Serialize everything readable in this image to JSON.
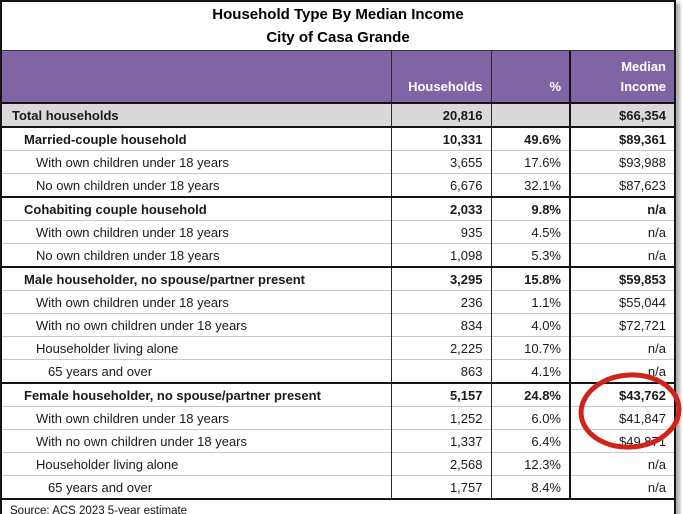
{
  "title": {
    "line1": "Household Type By Median Income",
    "line2": "City of Casa Grande"
  },
  "columns": {
    "households": "Households",
    "percent": "%",
    "median_line1": "Median",
    "median_line2": "Income"
  },
  "table": {
    "rows": [
      {
        "label": "Total households",
        "households": "20,816",
        "percent": "",
        "income": "$66,354",
        "style": "total"
      },
      {
        "label": "Married-couple household",
        "households": "10,331",
        "percent": "49.6%",
        "income": "$89,361",
        "style": "group"
      },
      {
        "label": "With own children under 18 years",
        "households": "3,655",
        "percent": "17.6%",
        "income": "$93,988",
        "style": "sub"
      },
      {
        "label": "No own children under 18 years",
        "households": "6,676",
        "percent": "32.1%",
        "income": "$87,623",
        "style": "sub"
      },
      {
        "label": "Cohabiting couple household",
        "households": "2,033",
        "percent": "9.8%",
        "income": "n/a",
        "style": "group"
      },
      {
        "label": "With own children under 18 years",
        "households": "935",
        "percent": "4.5%",
        "income": "n/a",
        "style": "sub"
      },
      {
        "label": "No own children under 18 years",
        "households": "1,098",
        "percent": "5.3%",
        "income": "n/a",
        "style": "sub"
      },
      {
        "label": "Male householder, no spouse/partner present",
        "households": "3,295",
        "percent": "15.8%",
        "income": "$59,853",
        "style": "group"
      },
      {
        "label": "With own children under 18 years",
        "households": "236",
        "percent": "1.1%",
        "income": "$55,044",
        "style": "sub"
      },
      {
        "label": "With no own children under 18 years",
        "households": "834",
        "percent": "4.0%",
        "income": "$72,721",
        "style": "sub"
      },
      {
        "label": "Householder living alone",
        "households": "2,225",
        "percent": "10.7%",
        "income": "n/a",
        "style": "sub"
      },
      {
        "label": "65 years and over",
        "households": "863",
        "percent": "4.1%",
        "income": "n/a",
        "style": "sub2"
      },
      {
        "label": "Female householder, no spouse/partner present",
        "households": "5,157",
        "percent": "24.8%",
        "income": "$43,762",
        "style": "group"
      },
      {
        "label": "With own children under 18 years",
        "households": "1,252",
        "percent": "6.0%",
        "income": "$41,847",
        "style": "sub"
      },
      {
        "label": "With no own children under 18 years",
        "households": "1,337",
        "percent": "6.4%",
        "income": "$49,871",
        "style": "sub"
      },
      {
        "label": "Householder living alone",
        "households": "2,568",
        "percent": "12.3%",
        "income": "n/a",
        "style": "sub"
      },
      {
        "label": "65 years and over",
        "households": "1,757",
        "percent": "8.4%",
        "income": "n/a",
        "style": "sub2"
      }
    ]
  },
  "source": {
    "text": "Source: ACS 2023 5-year estimate"
  },
  "annotation": {
    "type": "circle-highlight",
    "circled_values": [
      "$43,762",
      "$41,847",
      "$49,871"
    ],
    "color": "#d0241b"
  },
  "colors": {
    "header_purple": "#8065a5",
    "total_row_gray": "#dbd8db",
    "annotation_red": "#d0241b"
  }
}
